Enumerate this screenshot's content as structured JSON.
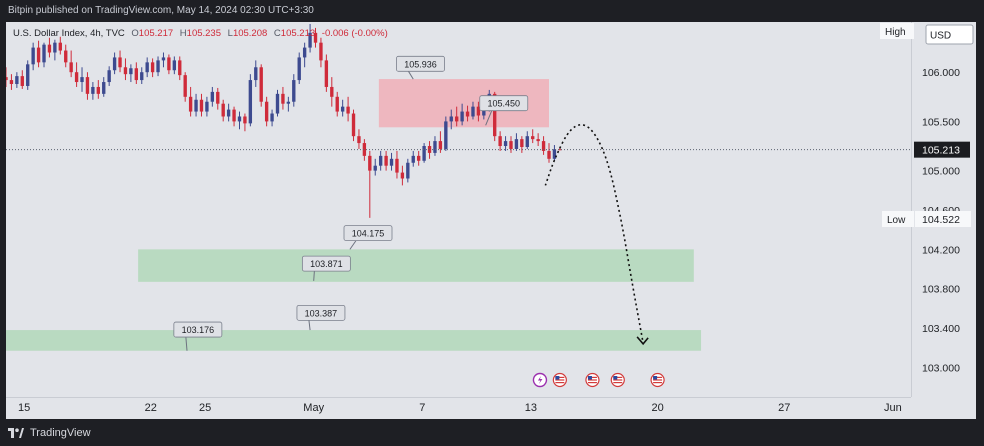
{
  "header": {
    "publisher_line": "Bitpin published on TradingView.com, May 14, 2024 02:30 UTC+3:30"
  },
  "footer": {
    "brand": "TradingView"
  },
  "legend": {
    "symbol": "U.S. Dollar Index, 4h, TVC",
    "o_label": "O",
    "open": "105.217",
    "h_label": "H",
    "high": "105.235",
    "l_label": "L",
    "low": "105.208",
    "c_label": "C",
    "close": "105.213",
    "change": "-0.006 (-0.00%)"
  },
  "price_scale": {
    "currency": "USD",
    "high_label": "High",
    "low_label": "Low",
    "low_value": "104.522",
    "last_price": "105.213",
    "ticks": [
      {
        "label": "106.000",
        "value": 106.0
      },
      {
        "label": "105.500",
        "value": 105.5
      },
      {
        "label": "105.000",
        "value": 105.0
      },
      {
        "label": "104.600",
        "value": 104.6
      },
      {
        "label": "104.200",
        "value": 104.2
      },
      {
        "label": "103.800",
        "value": 103.8
      },
      {
        "label": "103.400",
        "value": 103.4
      },
      {
        "label": "103.000",
        "value": 103.0
      }
    ]
  },
  "time_scale": {
    "ticks": [
      {
        "label": "15",
        "day": 15
      },
      {
        "label": "22",
        "day": 22
      },
      {
        "label": "25",
        "day": 25
      },
      {
        "label": "May",
        "day": 31
      },
      {
        "label": "7",
        "day": 37
      },
      {
        "label": "13",
        "day": 43
      },
      {
        "label": "20",
        "day": 50
      },
      {
        "label": "27",
        "day": 57
      },
      {
        "label": "Jun",
        "day": 63
      }
    ]
  },
  "event_icons": [
    {
      "icon": "lightning-icon",
      "day": 43.5
    },
    {
      "icon": "us-flag-icon",
      "day": 44.6
    },
    {
      "icon": "us-flag-icon",
      "day": 46.4
    },
    {
      "icon": "us-flag-icon",
      "day": 47.8
    },
    {
      "icon": "us-flag-icon",
      "day": 50.0
    }
  ],
  "colors": {
    "up": "#3d4a8f",
    "down": "#cf2b3a",
    "resistance_zone": "#efb1ba",
    "support_zone": "#b5d8bd",
    "price_label_bg": "#dfe1e6",
    "axis_text": "#202226"
  },
  "chart_data": {
    "type": "candlestick",
    "instrument": "U.S. Dollar Index",
    "interval": "4h",
    "x_axis": "day index (Apr 1 = 1; May 1 = 31; Jun 1 = 62)",
    "xlim": [
      14,
      64
    ],
    "ylim": [
      102.7,
      106.51
    ],
    "last_price": 105.213,
    "zones": [
      {
        "kind": "resistance",
        "y_low": 105.44,
        "y_high": 105.93,
        "x_start": 34.6,
        "x_end": 44.0
      },
      {
        "kind": "support",
        "y_low": 103.87,
        "y_high": 104.2,
        "x_start": 21.3,
        "x_end": 52.0
      },
      {
        "kind": "support",
        "y_low": 103.17,
        "y_high": 103.38,
        "x_start": 14.0,
        "x_end": 52.4
      }
    ],
    "annotations": [
      {
        "text": "105.936",
        "x": 36.9,
        "y": 106.08,
        "arrow_to_x": 36.5,
        "arrow_to_y": 105.93
      },
      {
        "text": "105.450",
        "x": 41.5,
        "y": 105.68,
        "arrow_to_x": 40.5,
        "arrow_to_y": 105.46
      },
      {
        "text": "104.175",
        "x": 34.0,
        "y": 104.36,
        "arrow_to_x": 33.0,
        "arrow_to_y": 104.2
      },
      {
        "text": "103.871",
        "x": 31.7,
        "y": 104.05,
        "arrow_to_x": 31.0,
        "arrow_to_y": 103.88
      },
      {
        "text": "103.387",
        "x": 31.4,
        "y": 103.55,
        "arrow_to_x": 30.8,
        "arrow_to_y": 103.38
      },
      {
        "text": "103.176",
        "x": 24.6,
        "y": 103.38,
        "arrow_to_x": 24.0,
        "arrow_to_y": 103.17
      }
    ],
    "projection": [
      [
        43.8,
        104.85
      ],
      [
        44.3,
        105.12
      ],
      [
        45.2,
        105.45
      ],
      [
        46.2,
        105.48
      ],
      [
        47.2,
        105.15
      ],
      [
        48.0,
        104.5
      ],
      [
        48.6,
        103.85
      ],
      [
        49.2,
        103.25
      ]
    ],
    "candles": [
      {
        "x": 14.0,
        "o": 105.95,
        "h": 106.05,
        "l": 105.85,
        "c": 105.92
      },
      {
        "x": 14.3,
        "o": 105.92,
        "h": 105.98,
        "l": 105.82,
        "c": 105.88
      },
      {
        "x": 14.6,
        "o": 105.88,
        "h": 106.0,
        "l": 105.84,
        "c": 105.96
      },
      {
        "x": 14.9,
        "o": 105.96,
        "h": 106.02,
        "l": 105.83,
        "c": 105.86
      },
      {
        "x": 15.2,
        "o": 105.86,
        "h": 106.12,
        "l": 105.82,
        "c": 106.08
      },
      {
        "x": 15.5,
        "o": 106.08,
        "h": 106.3,
        "l": 106.02,
        "c": 106.25
      },
      {
        "x": 15.8,
        "o": 106.25,
        "h": 106.32,
        "l": 106.05,
        "c": 106.1
      },
      {
        "x": 16.1,
        "o": 106.1,
        "h": 106.3,
        "l": 106.05,
        "c": 106.28
      },
      {
        "x": 16.4,
        "o": 106.28,
        "h": 106.35,
        "l": 106.15,
        "c": 106.2
      },
      {
        "x": 16.7,
        "o": 106.2,
        "h": 106.33,
        "l": 106.12,
        "c": 106.3
      },
      {
        "x": 17.0,
        "o": 106.3,
        "h": 106.36,
        "l": 106.18,
        "c": 106.22
      },
      {
        "x": 17.3,
        "o": 106.22,
        "h": 106.28,
        "l": 106.05,
        "c": 106.1
      },
      {
        "x": 17.6,
        "o": 106.1,
        "h": 106.22,
        "l": 105.95,
        "c": 106.0
      },
      {
        "x": 17.9,
        "o": 106.0,
        "h": 106.1,
        "l": 105.85,
        "c": 105.9
      },
      {
        "x": 18.2,
        "o": 105.9,
        "h": 106.05,
        "l": 105.8,
        "c": 105.95
      },
      {
        "x": 18.5,
        "o": 105.95,
        "h": 106.0,
        "l": 105.72,
        "c": 105.78
      },
      {
        "x": 18.8,
        "o": 105.78,
        "h": 105.9,
        "l": 105.72,
        "c": 105.85
      },
      {
        "x": 19.1,
        "o": 105.85,
        "h": 105.92,
        "l": 105.73,
        "c": 105.78
      },
      {
        "x": 19.4,
        "o": 105.78,
        "h": 105.95,
        "l": 105.75,
        "c": 105.9
      },
      {
        "x": 19.7,
        "o": 105.9,
        "h": 106.06,
        "l": 105.86,
        "c": 106.02
      },
      {
        "x": 20.0,
        "o": 106.02,
        "h": 106.2,
        "l": 105.98,
        "c": 106.15
      },
      {
        "x": 20.3,
        "o": 106.15,
        "h": 106.22,
        "l": 106.0,
        "c": 106.05
      },
      {
        "x": 20.6,
        "o": 106.05,
        "h": 106.14,
        "l": 105.92,
        "c": 105.98
      },
      {
        "x": 20.9,
        "o": 105.98,
        "h": 106.08,
        "l": 105.9,
        "c": 106.04
      },
      {
        "x": 21.2,
        "o": 106.04,
        "h": 106.1,
        "l": 105.88,
        "c": 105.92
      },
      {
        "x": 21.5,
        "o": 105.92,
        "h": 106.05,
        "l": 105.88,
        "c": 106.0
      },
      {
        "x": 21.8,
        "o": 106.0,
        "h": 106.15,
        "l": 105.95,
        "c": 106.1
      },
      {
        "x": 22.1,
        "o": 106.1,
        "h": 106.14,
        "l": 105.95,
        "c": 106.0
      },
      {
        "x": 22.4,
        "o": 106.0,
        "h": 106.16,
        "l": 105.96,
        "c": 106.12
      },
      {
        "x": 22.7,
        "o": 106.12,
        "h": 106.2,
        "l": 106.05,
        "c": 106.15
      },
      {
        "x": 23.0,
        "o": 106.15,
        "h": 106.18,
        "l": 105.98,
        "c": 106.02
      },
      {
        "x": 23.3,
        "o": 106.02,
        "h": 106.16,
        "l": 105.98,
        "c": 106.12
      },
      {
        "x": 23.6,
        "o": 106.12,
        "h": 106.16,
        "l": 105.92,
        "c": 105.97
      },
      {
        "x": 23.9,
        "o": 105.97,
        "h": 106.0,
        "l": 105.7,
        "c": 105.75
      },
      {
        "x": 24.2,
        "o": 105.75,
        "h": 105.85,
        "l": 105.55,
        "c": 105.6
      },
      {
        "x": 24.5,
        "o": 105.6,
        "h": 105.78,
        "l": 105.55,
        "c": 105.72
      },
      {
        "x": 24.8,
        "o": 105.72,
        "h": 105.78,
        "l": 105.55,
        "c": 105.6
      },
      {
        "x": 25.1,
        "o": 105.6,
        "h": 105.75,
        "l": 105.55,
        "c": 105.7
      },
      {
        "x": 25.4,
        "o": 105.7,
        "h": 105.85,
        "l": 105.65,
        "c": 105.8
      },
      {
        "x": 25.7,
        "o": 105.8,
        "h": 105.84,
        "l": 105.62,
        "c": 105.68
      },
      {
        "x": 26.0,
        "o": 105.68,
        "h": 105.72,
        "l": 105.5,
        "c": 105.55
      },
      {
        "x": 26.3,
        "o": 105.55,
        "h": 105.68,
        "l": 105.5,
        "c": 105.62
      },
      {
        "x": 26.6,
        "o": 105.62,
        "h": 105.65,
        "l": 105.45,
        "c": 105.5
      },
      {
        "x": 26.9,
        "o": 105.5,
        "h": 105.6,
        "l": 105.42,
        "c": 105.55
      },
      {
        "x": 27.2,
        "o": 105.55,
        "h": 105.58,
        "l": 105.4,
        "c": 105.48
      },
      {
        "x": 27.5,
        "o": 105.48,
        "h": 105.98,
        "l": 105.45,
        "c": 105.92
      },
      {
        "x": 27.8,
        "o": 105.92,
        "h": 106.12,
        "l": 105.85,
        "c": 106.05
      },
      {
        "x": 28.1,
        "o": 106.05,
        "h": 106.08,
        "l": 105.65,
        "c": 105.7
      },
      {
        "x": 28.4,
        "o": 105.7,
        "h": 105.75,
        "l": 105.45,
        "c": 105.5
      },
      {
        "x": 28.7,
        "o": 105.5,
        "h": 105.62,
        "l": 105.45,
        "c": 105.58
      },
      {
        "x": 29.0,
        "o": 105.58,
        "h": 105.82,
        "l": 105.55,
        "c": 105.78
      },
      {
        "x": 29.3,
        "o": 105.78,
        "h": 105.85,
        "l": 105.62,
        "c": 105.68
      },
      {
        "x": 29.6,
        "o": 105.68,
        "h": 105.75,
        "l": 105.6,
        "c": 105.7
      },
      {
        "x": 29.9,
        "o": 105.7,
        "h": 105.98,
        "l": 105.65,
        "c": 105.92
      },
      {
        "x": 30.2,
        "o": 105.92,
        "h": 106.2,
        "l": 105.88,
        "c": 106.15
      },
      {
        "x": 30.5,
        "o": 106.15,
        "h": 106.3,
        "l": 106.05,
        "c": 106.25
      },
      {
        "x": 30.8,
        "o": 106.25,
        "h": 106.49,
        "l": 106.2,
        "c": 106.4
      },
      {
        "x": 31.1,
        "o": 106.4,
        "h": 106.45,
        "l": 106.25,
        "c": 106.3
      },
      {
        "x": 31.4,
        "o": 106.3,
        "h": 106.35,
        "l": 106.05,
        "c": 106.12
      },
      {
        "x": 31.7,
        "o": 106.12,
        "h": 106.18,
        "l": 105.8,
        "c": 105.85
      },
      {
        "x": 32.0,
        "o": 105.85,
        "h": 105.95,
        "l": 105.65,
        "c": 105.75
      },
      {
        "x": 32.3,
        "o": 105.75,
        "h": 105.8,
        "l": 105.55,
        "c": 105.6
      },
      {
        "x": 32.6,
        "o": 105.6,
        "h": 105.72,
        "l": 105.55,
        "c": 105.65
      },
      {
        "x": 32.9,
        "o": 105.65,
        "h": 105.75,
        "l": 105.5,
        "c": 105.58
      },
      {
        "x": 33.2,
        "o": 105.58,
        "h": 105.62,
        "l": 105.3,
        "c": 105.35
      },
      {
        "x": 33.5,
        "o": 105.35,
        "h": 105.42,
        "l": 105.22,
        "c": 105.28
      },
      {
        "x": 33.8,
        "o": 105.28,
        "h": 105.32,
        "l": 105.1,
        "c": 105.15
      },
      {
        "x": 34.1,
        "o": 105.15,
        "h": 105.2,
        "l": 104.52,
        "c": 105.0
      },
      {
        "x": 34.4,
        "o": 105.0,
        "h": 105.12,
        "l": 104.95,
        "c": 105.05
      },
      {
        "x": 34.7,
        "o": 105.05,
        "h": 105.2,
        "l": 105.0,
        "c": 105.15
      },
      {
        "x": 35.0,
        "o": 105.15,
        "h": 105.2,
        "l": 105.0,
        "c": 105.05
      },
      {
        "x": 35.3,
        "o": 105.05,
        "h": 105.18,
        "l": 105.0,
        "c": 105.12
      },
      {
        "x": 35.6,
        "o": 105.12,
        "h": 105.2,
        "l": 104.92,
        "c": 104.98
      },
      {
        "x": 35.9,
        "o": 104.98,
        "h": 105.05,
        "l": 104.85,
        "c": 104.92
      },
      {
        "x": 36.2,
        "o": 104.92,
        "h": 105.12,
        "l": 104.88,
        "c": 105.08
      },
      {
        "x": 36.5,
        "o": 105.08,
        "h": 105.2,
        "l": 105.04,
        "c": 105.15
      },
      {
        "x": 36.8,
        "o": 105.15,
        "h": 105.2,
        "l": 105.05,
        "c": 105.1
      },
      {
        "x": 37.1,
        "o": 105.1,
        "h": 105.28,
        "l": 105.08,
        "c": 105.25
      },
      {
        "x": 37.4,
        "o": 105.25,
        "h": 105.3,
        "l": 105.12,
        "c": 105.18
      },
      {
        "x": 37.7,
        "o": 105.18,
        "h": 105.35,
        "l": 105.15,
        "c": 105.3
      },
      {
        "x": 38.0,
        "o": 105.3,
        "h": 105.4,
        "l": 105.18,
        "c": 105.22
      },
      {
        "x": 38.3,
        "o": 105.22,
        "h": 105.55,
        "l": 105.2,
        "c": 105.5
      },
      {
        "x": 38.6,
        "o": 105.5,
        "h": 105.62,
        "l": 105.42,
        "c": 105.55
      },
      {
        "x": 38.9,
        "o": 105.55,
        "h": 105.65,
        "l": 105.45,
        "c": 105.5
      },
      {
        "x": 39.2,
        "o": 105.5,
        "h": 105.68,
        "l": 105.46,
        "c": 105.6
      },
      {
        "x": 39.5,
        "o": 105.6,
        "h": 105.66,
        "l": 105.5,
        "c": 105.55
      },
      {
        "x": 39.8,
        "o": 105.55,
        "h": 105.7,
        "l": 105.52,
        "c": 105.65
      },
      {
        "x": 40.1,
        "o": 105.65,
        "h": 105.7,
        "l": 105.5,
        "c": 105.56
      },
      {
        "x": 40.4,
        "o": 105.56,
        "h": 105.68,
        "l": 105.52,
        "c": 105.62
      },
      {
        "x": 40.7,
        "o": 105.62,
        "h": 105.82,
        "l": 105.6,
        "c": 105.78
      },
      {
        "x": 41.0,
        "o": 105.78,
        "h": 105.8,
        "l": 105.3,
        "c": 105.35
      },
      {
        "x": 41.3,
        "o": 105.35,
        "h": 105.4,
        "l": 105.2,
        "c": 105.25
      },
      {
        "x": 41.6,
        "o": 105.25,
        "h": 105.35,
        "l": 105.2,
        "c": 105.3
      },
      {
        "x": 41.9,
        "o": 105.3,
        "h": 105.35,
        "l": 105.18,
        "c": 105.22
      },
      {
        "x": 42.2,
        "o": 105.22,
        "h": 105.38,
        "l": 105.2,
        "c": 105.32
      },
      {
        "x": 42.5,
        "o": 105.32,
        "h": 105.35,
        "l": 105.18,
        "c": 105.24
      },
      {
        "x": 42.8,
        "o": 105.24,
        "h": 105.4,
        "l": 105.22,
        "c": 105.35
      },
      {
        "x": 43.1,
        "o": 105.35,
        "h": 105.42,
        "l": 105.28,
        "c": 105.32
      },
      {
        "x": 43.4,
        "o": 105.32,
        "h": 105.38,
        "l": 105.25,
        "c": 105.3
      },
      {
        "x": 43.7,
        "o": 105.3,
        "h": 105.35,
        "l": 105.16,
        "c": 105.2
      },
      {
        "x": 44.0,
        "o": 105.2,
        "h": 105.28,
        "l": 105.08,
        "c": 105.12
      },
      {
        "x": 44.3,
        "o": 105.12,
        "h": 105.26,
        "l": 105.1,
        "c": 105.217
      },
      {
        "x": 44.6,
        "o": 105.217,
        "h": 105.235,
        "l": 105.208,
        "c": 105.213
      }
    ]
  }
}
